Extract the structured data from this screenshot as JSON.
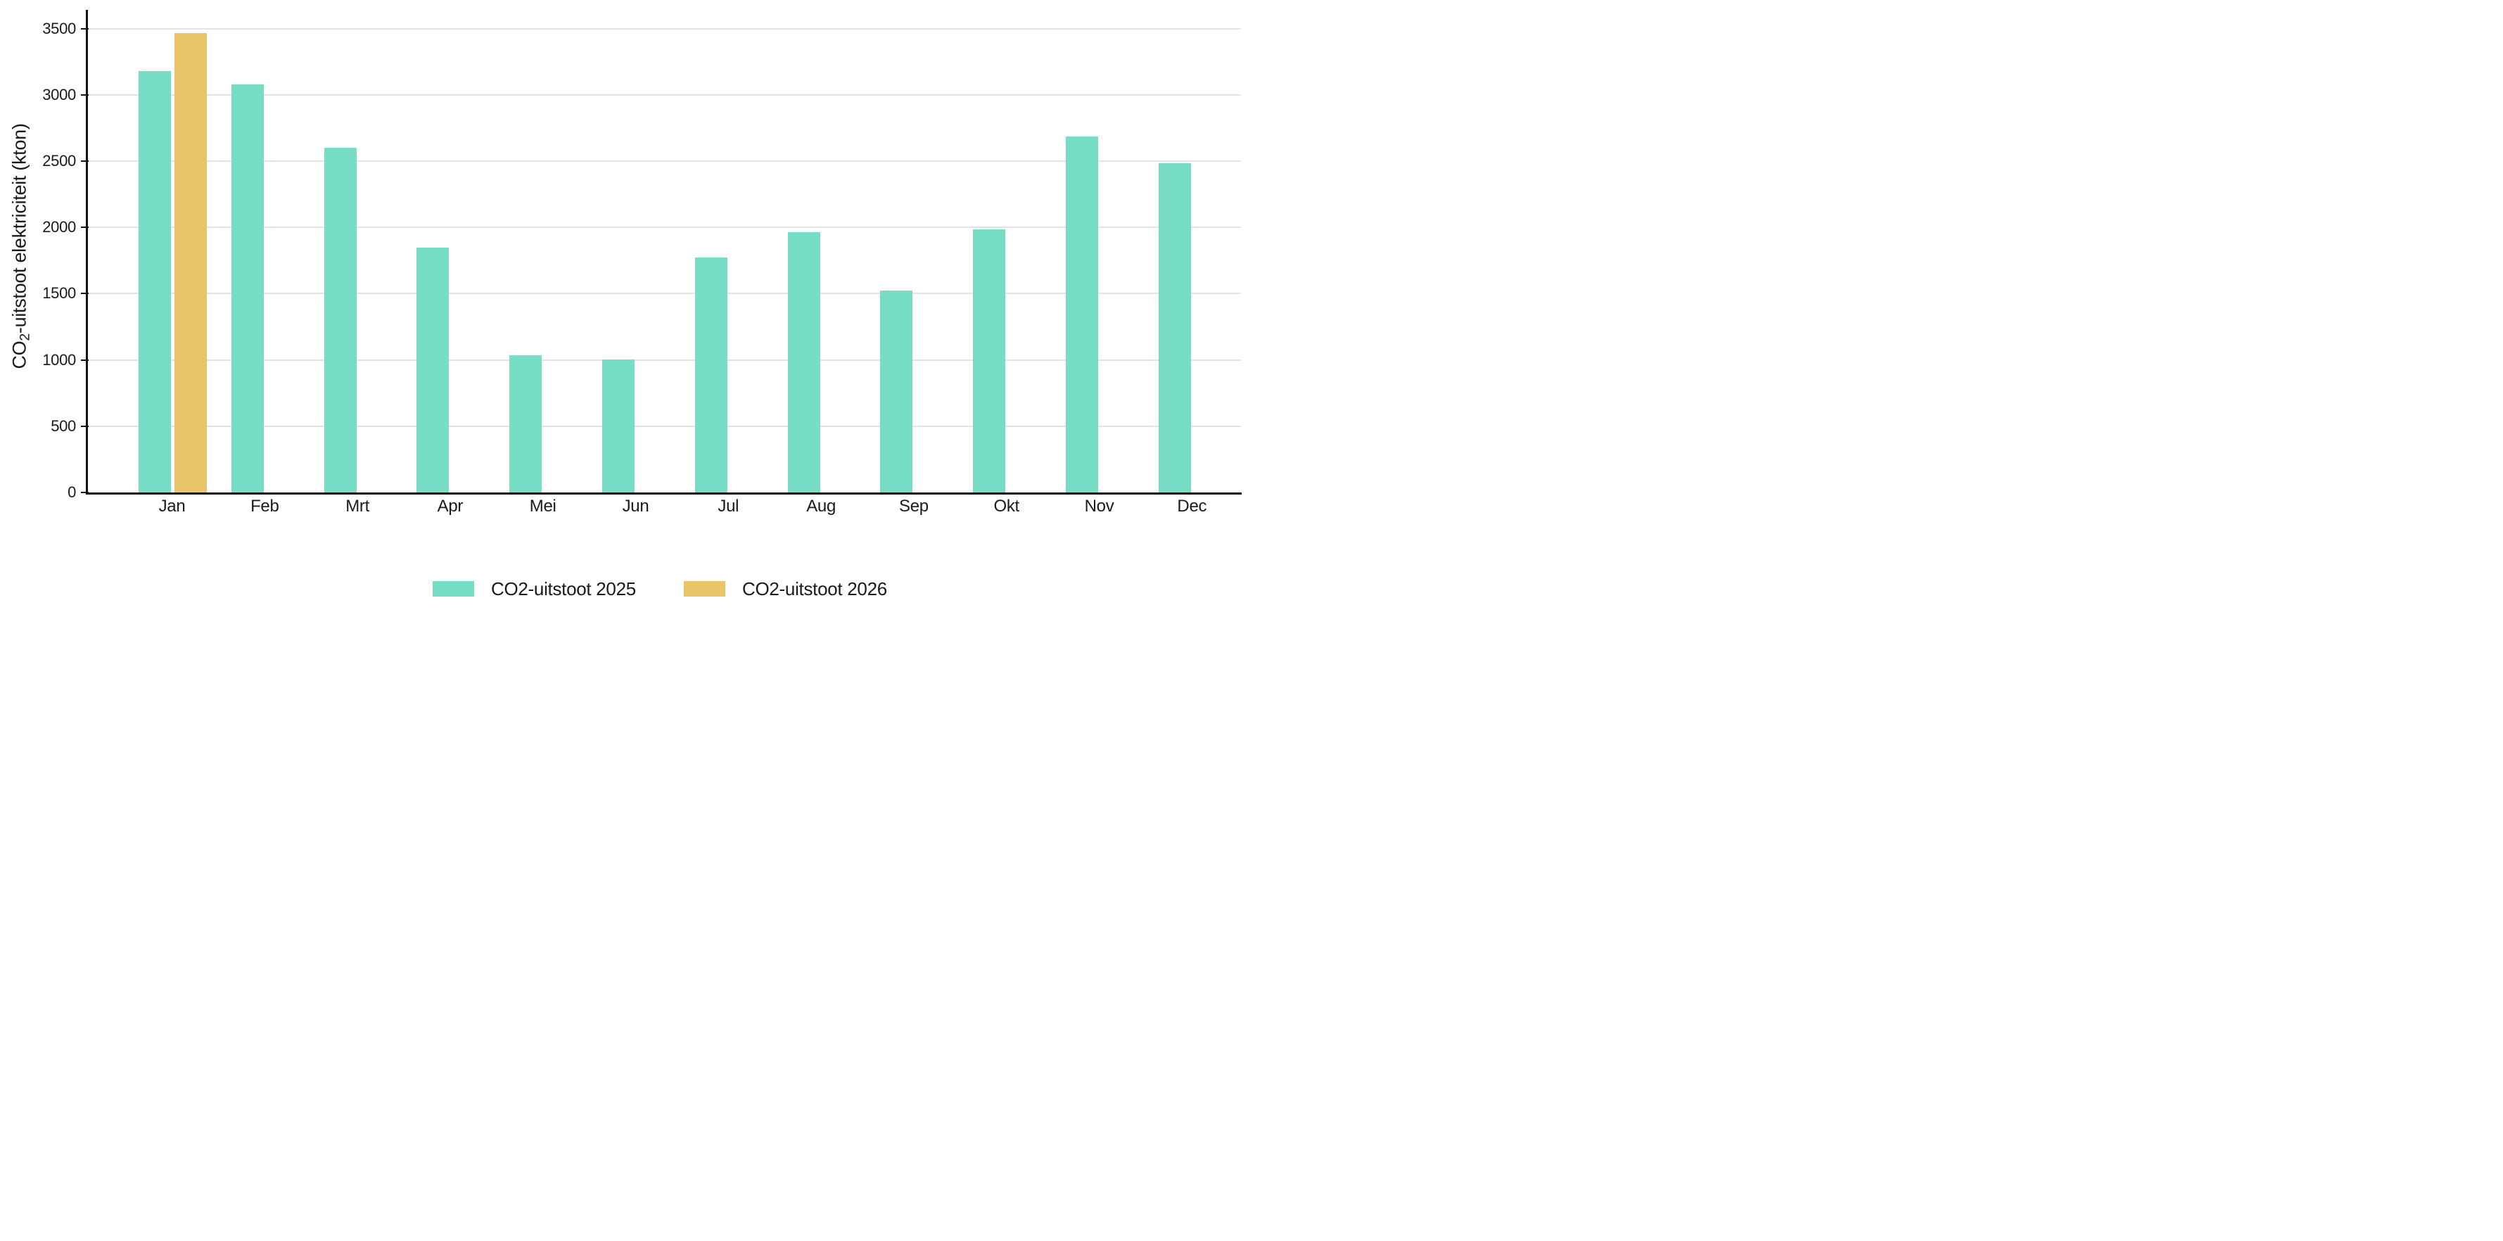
{
  "background_color": "#ffffff",
  "text_color": "#1a1a1a",
  "axis_color": "#111111",
  "gridline_color": "#e3e3e3",
  "chart_data": {
    "type": "bar",
    "title": "",
    "categories": [
      "Jan",
      "Feb",
      "Mrt",
      "Apr",
      "Mei",
      "Jun",
      "Jul",
      "Aug",
      "Sep",
      "Okt",
      "Nov",
      "Dec"
    ],
    "series": [
      {
        "name": "CO2-uitstoot 2025",
        "color": "#77DEC5",
        "values": [
          3180,
          3080,
          2600,
          1845,
          1035,
          1005,
          1775,
          1965,
          1525,
          1985,
          2685,
          2485
        ]
      },
      {
        "name": "CO2-uitstoot 2026",
        "color": "#E9C468",
        "values": [
          3465,
          null,
          null,
          null,
          null,
          null,
          null,
          null,
          null,
          null,
          null,
          null
        ]
      }
    ],
    "xlabel": "",
    "ylabel": "CO2-uitstoot elektriciteit (kton)",
    "ylabel_parts": {
      "pre": "CO",
      "sub": "2",
      "post": "-uitstoot elektriciteit (kton)"
    },
    "yticks": [
      0,
      500,
      1000,
      1500,
      2000,
      2500,
      3000,
      3500
    ],
    "ylim": [
      0,
      3500
    ],
    "grid": true,
    "legend_position": "bottom"
  }
}
